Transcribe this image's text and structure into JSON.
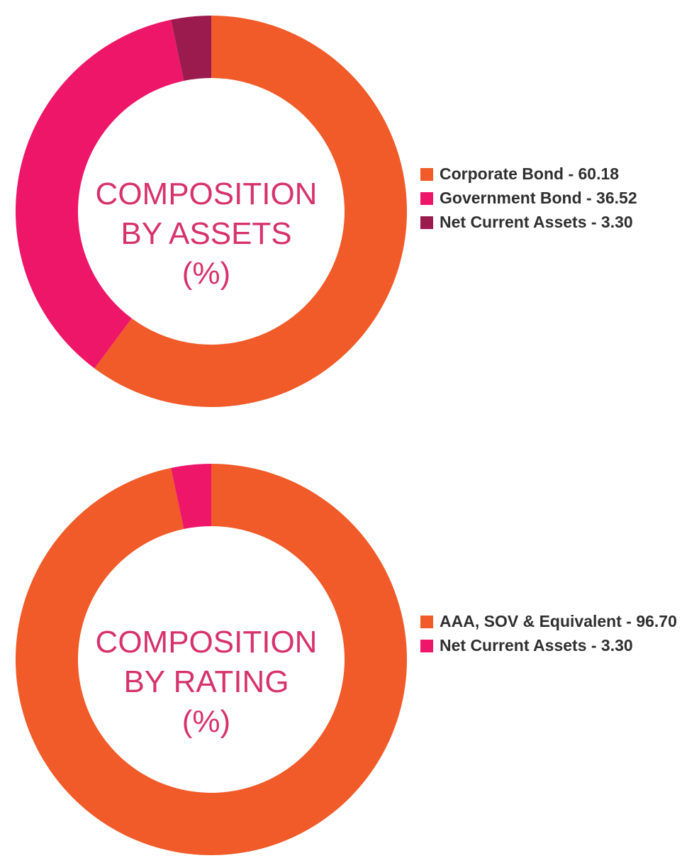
{
  "chart_data": [
    {
      "type": "pie",
      "title_lines": [
        "COMPOSITION",
        "BY ASSETS",
        "(%)"
      ],
      "slices": [
        {
          "label": "Corporate Bond - 60.18",
          "value": 60.18,
          "color": "#f15a29"
        },
        {
          "label": "Government Bond - 36.52",
          "value": 36.52,
          "color": "#ed1669"
        },
        {
          "label": "Net Current Assets - 3.30",
          "value": 3.3,
          "color": "#9b1b4f"
        }
      ],
      "legend_position": "right"
    },
    {
      "type": "pie",
      "title_lines": [
        "COMPOSITION",
        "BY RATING",
        "(%)"
      ],
      "slices": [
        {
          "label": "AAA, SOV & Equivalent - 96.70",
          "value": 96.7,
          "color": "#f15a29"
        },
        {
          "label": "Net Current Assets - 3.30",
          "value": 3.3,
          "color": "#ed1669"
        }
      ],
      "legend_position": "right"
    }
  ],
  "title_color": "#d6336c"
}
